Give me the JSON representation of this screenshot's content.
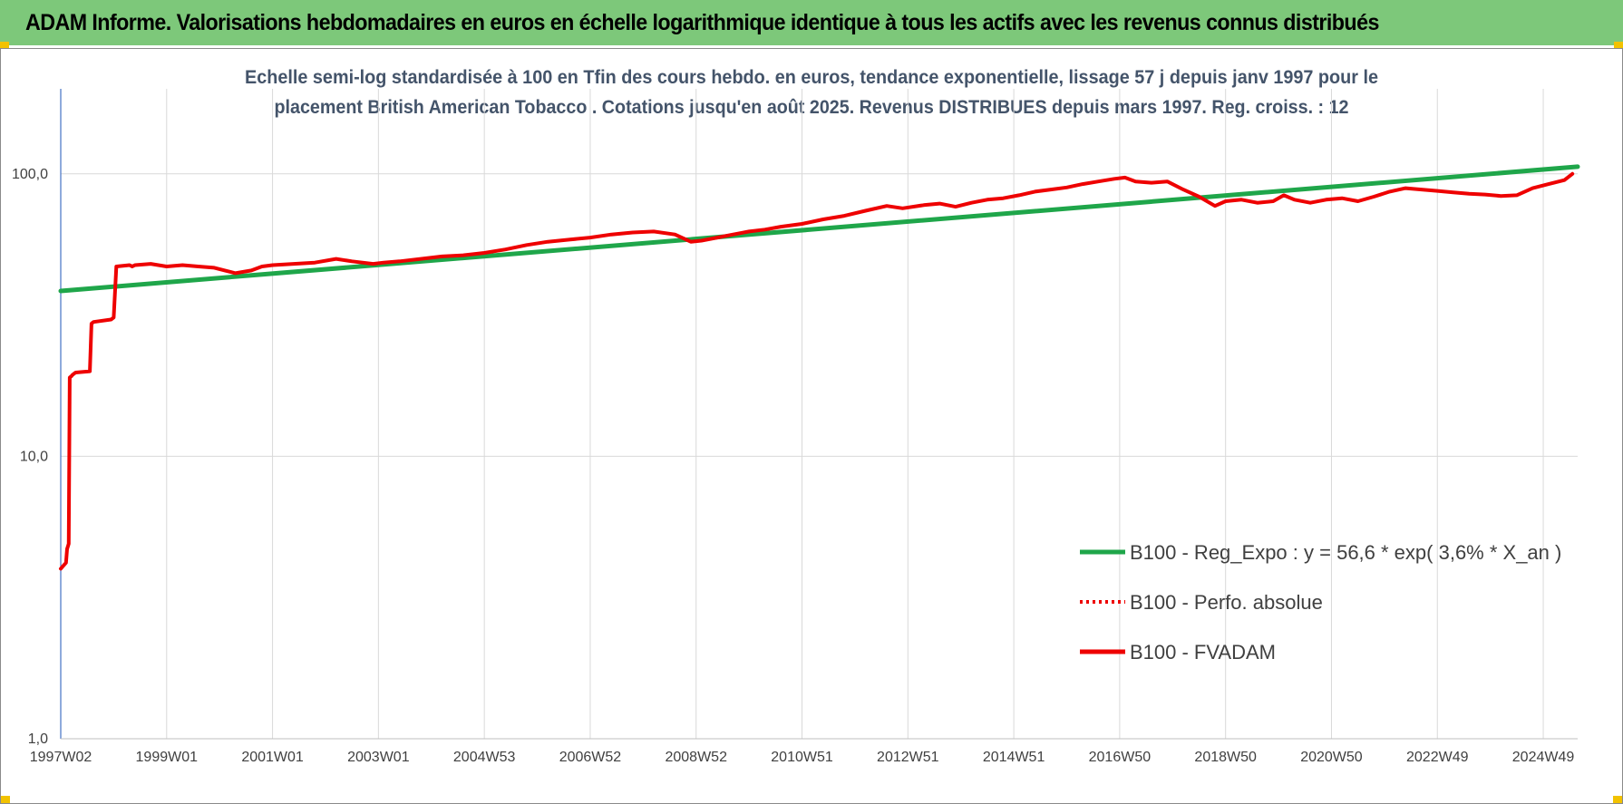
{
  "header": {
    "title": "ADAM Informe. Valorisations hebdomadaires en euros en échelle logarithmique identique à tous les actifs avec les revenus connus distribués"
  },
  "colors": {
    "banner": "#7dc87a",
    "regression": "#1fa64a",
    "fvadam": "#ee0000",
    "perfo": "#ee0000",
    "title_text": "#44546a",
    "grid": "#d9d9d9",
    "axis": "#4472c4"
  },
  "chart_data": {
    "type": "line",
    "title_lines": [
      "Echelle semi-log standardisée à 100 en Tfin des cours hebdo. en euros, tendance exponentielle, lissage 57 j depuis janv 1997 pour le",
      "placement British American Tobacco . Cotations jusqu'en août 2025. Revenus DISTRIBUES depuis mars 1997. Reg. croiss. : 12"
    ],
    "y_scale": "log",
    "ylim": [
      1,
      200
    ],
    "y_ticks": [
      {
        "value": 1,
        "label": "1,0"
      },
      {
        "value": 10,
        "label": "10,0"
      },
      {
        "value": 100,
        "label": "100,0"
      }
    ],
    "xlim": [
      1997.0,
      2025.65
    ],
    "x_ticks": [
      {
        "value": 1997.0,
        "label": "1997W02"
      },
      {
        "value": 1999.0,
        "label": "1999W01"
      },
      {
        "value": 2001.0,
        "label": "2001W01"
      },
      {
        "value": 2003.0,
        "label": "2003W01"
      },
      {
        "value": 2005.0,
        "label": "2004W53"
      },
      {
        "value": 2007.0,
        "label": "2006W52"
      },
      {
        "value": 2009.0,
        "label": "2008W52"
      },
      {
        "value": 2011.0,
        "label": "2010W51"
      },
      {
        "value": 2013.0,
        "label": "2012W51"
      },
      {
        "value": 2015.0,
        "label": "2014W51"
      },
      {
        "value": 2017.0,
        "label": "2016W50"
      },
      {
        "value": 2019.0,
        "label": "2018W50"
      },
      {
        "value": 2021.0,
        "label": "2020W50"
      },
      {
        "value": 2023.0,
        "label": "2022W49"
      },
      {
        "value": 2025.0,
        "label": "2024W49"
      }
    ],
    "grid": true,
    "legend_position": "right",
    "series": [
      {
        "name": "B100 - Reg_Expo : y = 56,6 * exp( 3,6% *  X_an )",
        "key": "regression",
        "style": "solid",
        "x": [
          1997.0,
          2025.65
        ],
        "y": [
          38.5,
          106
        ]
      },
      {
        "name": "B100 - Perfo. absolue",
        "key": "perfo",
        "style": "dotted",
        "x": [],
        "y": []
      },
      {
        "name": "B100 - FVADAM",
        "key": "fvadam",
        "style": "solid",
        "x": [
          1997.0,
          1997.1,
          1997.12,
          1997.15,
          1997.17,
          1997.2,
          1997.22,
          1997.25,
          1997.28,
          1997.55,
          1997.58,
          1997.6,
          1997.62,
          1997.95,
          1998.0,
          1998.05,
          1998.3,
          1998.35,
          1998.4,
          1998.7,
          1999.0,
          1999.3,
          1999.6,
          1999.9,
          2000.1,
          2000.3,
          2000.6,
          2000.8,
          2001.0,
          2001.4,
          2001.8,
          2002.2,
          2002.5,
          2002.7,
          2002.9,
          2003.1,
          2003.4,
          2003.8,
          2004.2,
          2004.6,
          2005.0,
          2005.4,
          2005.8,
          2006.2,
          2006.6,
          2007.0,
          2007.4,
          2007.8,
          2008.2,
          2008.6,
          2008.9,
          2009.1,
          2009.4,
          2009.7,
          2010.0,
          2010.3,
          2010.6,
          2011.0,
          2011.4,
          2011.8,
          2012.2,
          2012.6,
          2012.9,
          2013.3,
          2013.6,
          2013.9,
          2014.2,
          2014.5,
          2014.8,
          2015.1,
          2015.4,
          2015.7,
          2016.0,
          2016.3,
          2016.6,
          2016.9,
          2017.1,
          2017.3,
          2017.6,
          2017.9,
          2018.2,
          2018.5,
          2018.8,
          2019.0,
          2019.3,
          2019.6,
          2019.9,
          2020.1,
          2020.3,
          2020.6,
          2020.9,
          2021.2,
          2021.5,
          2021.8,
          2022.1,
          2022.4,
          2022.7,
          2023.0,
          2023.3,
          2023.6,
          2023.9,
          2024.2,
          2024.5,
          2024.8,
          2025.1,
          2025.4,
          2025.55
        ],
        "y": [
          4.0,
          4.2,
          4.7,
          4.9,
          19.0,
          19.2,
          19.4,
          19.6,
          19.8,
          20.0,
          29.5,
          29.7,
          29.9,
          30.5,
          31.0,
          47.0,
          47.5,
          47.0,
          47.5,
          48.0,
          47.0,
          47.5,
          47.0,
          46.5,
          45.5,
          44.5,
          45.5,
          47.0,
          47.5,
          48.0,
          48.5,
          50.0,
          49.0,
          48.5,
          48.0,
          48.5,
          49.0,
          50.0,
          51.0,
          51.5,
          52.5,
          54.0,
          56.0,
          57.5,
          58.5,
          59.5,
          61.0,
          62.0,
          62.5,
          61.0,
          57.5,
          58.0,
          59.5,
          61.0,
          62.5,
          63.5,
          65.0,
          66.5,
          69.0,
          71.0,
          74.0,
          77.0,
          75.5,
          77.5,
          78.5,
          76.5,
          79.0,
          81.0,
          82.0,
          84.0,
          86.5,
          88.0,
          89.5,
          92.0,
          94.0,
          96.0,
          97.0,
          94.0,
          93.0,
          94.0,
          88.0,
          83.0,
          77.0,
          80.0,
          81.0,
          79.0,
          80.0,
          84.0,
          81.0,
          79.0,
          81.0,
          82.0,
          80.0,
          83.0,
          86.5,
          89.0,
          88.0,
          87.0,
          86.0,
          85.0,
          84.5,
          83.5,
          84.0,
          89.0,
          92.0,
          95.0,
          100.0
        ]
      }
    ]
  }
}
